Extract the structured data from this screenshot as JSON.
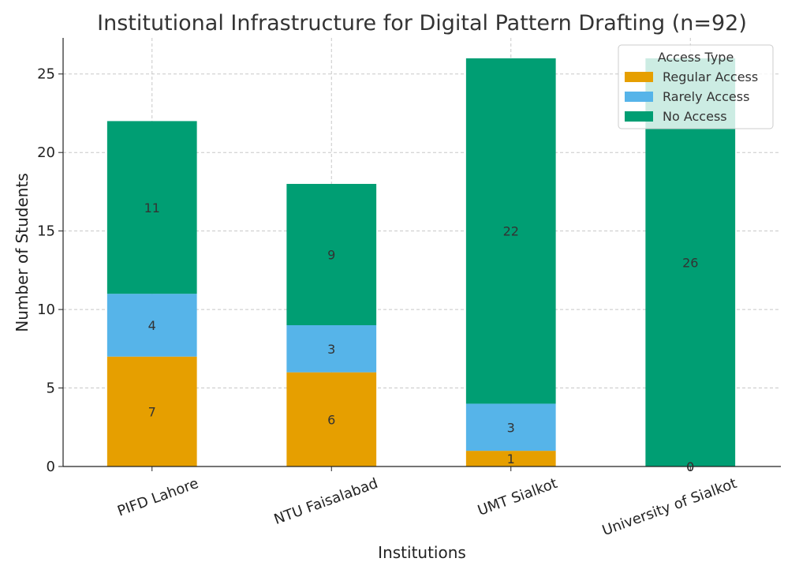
{
  "chart_data": {
    "type": "bar",
    "stacked": true,
    "title": "Institutional Infrastructure for Digital Pattern Drafting (n=92)",
    "xlabel": "Institutions",
    "ylabel": "Number of Students",
    "categories": [
      "PIFD Lahore",
      "NTU Faisalabad",
      "UMT Sialkot",
      "University of Sialkot"
    ],
    "ylim": [
      0,
      27.3
    ],
    "yticks": [
      0,
      5,
      10,
      15,
      20,
      25
    ],
    "grid": true,
    "legend": {
      "title": "Access Type",
      "placement": "top-right"
    },
    "series": [
      {
        "name": "Regular Access",
        "color": "#e69f00",
        "values": [
          7,
          6,
          1,
          0
        ]
      },
      {
        "name": "Rarely Access",
        "color": "#56b4e9",
        "values": [
          4,
          3,
          3,
          0
        ]
      },
      {
        "name": "No Access",
        "color": "#009e73",
        "values": [
          11,
          9,
          22,
          26
        ]
      }
    ]
  }
}
